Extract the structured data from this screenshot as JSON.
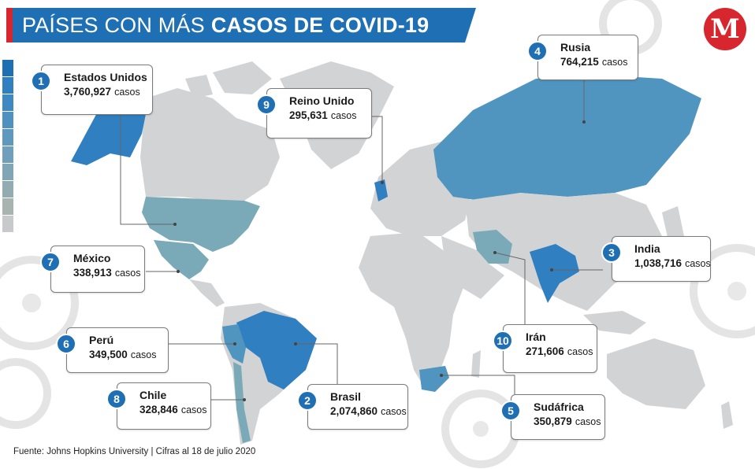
{
  "title": {
    "regular": "PAÍSES CON MÁS",
    "bold": "CASOS DE COVID-19"
  },
  "logo": {
    "letter": "M",
    "color": "#d8262f"
  },
  "colors": {
    "title_bar": "#1f6fb5",
    "land_default": "#d2d3d5",
    "highlight_top": "#2f7fc1",
    "highlight_mid": "#4f95c0",
    "highlight_low": "#7aa9b8",
    "badge": "#1f6fb5"
  },
  "legend_colors": [
    "#1f6fb5",
    "#2f7fc1",
    "#3f89c2",
    "#4f92c2",
    "#5f98bf",
    "#6f9fba",
    "#80a6b6",
    "#93acb1",
    "#a7b4b0",
    "#c7c9cb"
  ],
  "countries": [
    {
      "rank": "1",
      "name": "Estados Unidos",
      "cases": "3,760,927",
      "unit": "casos"
    },
    {
      "rank": "2",
      "name": "Brasil",
      "cases": "2,074,860",
      "unit": "casos"
    },
    {
      "rank": "3",
      "name": "India",
      "cases": "1,038,716",
      "unit": "casos"
    },
    {
      "rank": "4",
      "name": "Rusia",
      "cases": "764,215",
      "unit": "casos"
    },
    {
      "rank": "5",
      "name": "Sudáfrica",
      "cases": "350,879",
      "unit": "casos"
    },
    {
      "rank": "6",
      "name": "Perú",
      "cases": "349,500",
      "unit": "casos"
    },
    {
      "rank": "7",
      "name": "México",
      "cases": "338,913",
      "unit": "casos"
    },
    {
      "rank": "8",
      "name": "Chile",
      "cases": "328,846",
      "unit": "casos"
    },
    {
      "rank": "9",
      "name": "Reino Unido",
      "cases": "295,631",
      "unit": "casos"
    },
    {
      "rank": "10",
      "name": "Irán",
      "cases": "271,606",
      "unit": "casos"
    }
  ],
  "source": "Fuente: Johns Hopkins University | Cifras al 18 de julio 2020"
}
